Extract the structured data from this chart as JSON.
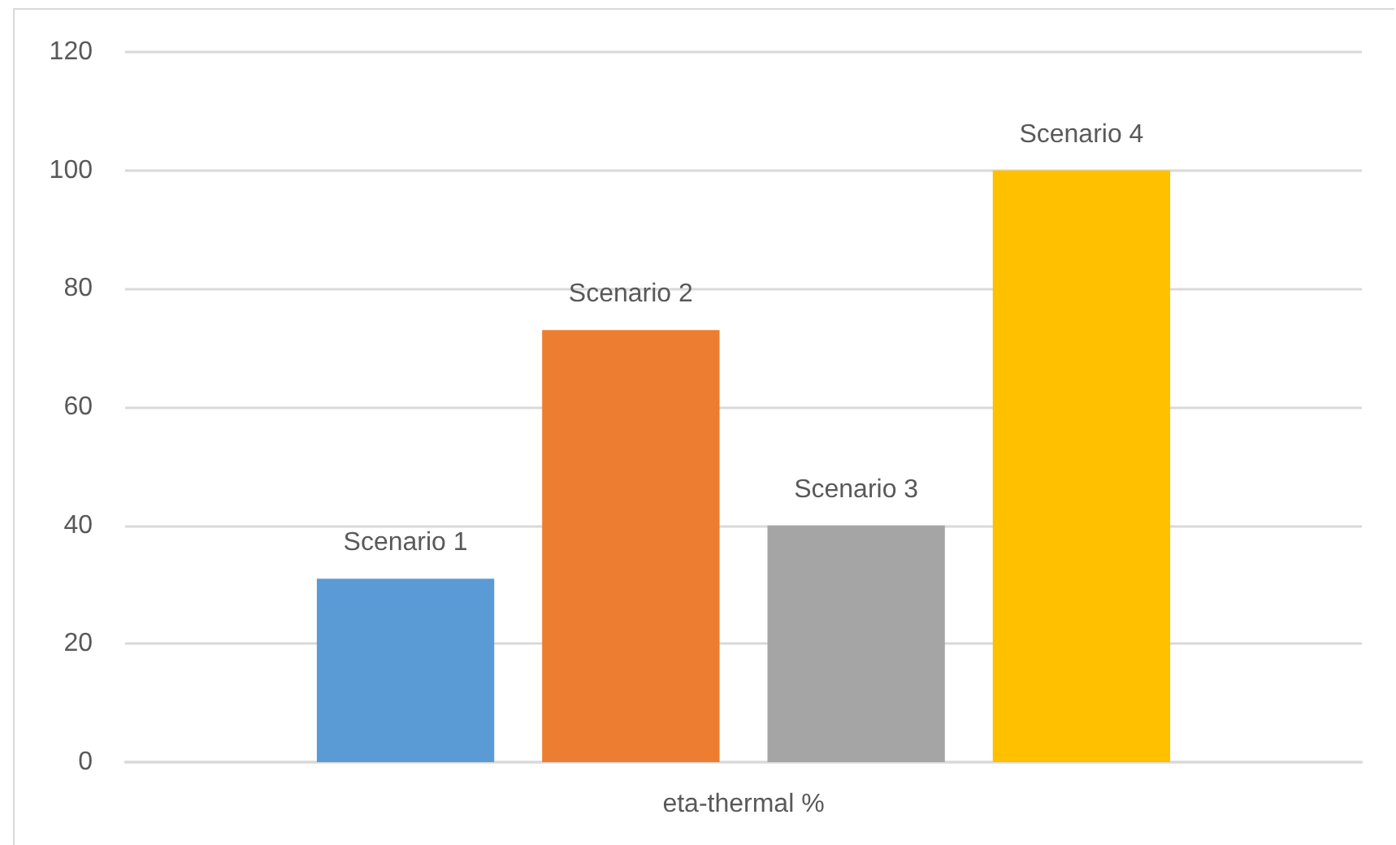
{
  "chart_data": {
    "type": "bar",
    "categories": [
      "eta-thermal %"
    ],
    "series": [
      {
        "name": "Scenario 1",
        "color": "#5b9bd5",
        "values": [
          31
        ]
      },
      {
        "name": "Scenario 2",
        "color": "#ed7d31",
        "values": [
          73
        ]
      },
      {
        "name": "Scenario 3",
        "color": "#a5a5a5",
        "values": [
          40
        ]
      },
      {
        "name": "Scenario 4",
        "color": "#ffc000",
        "values": [
          100
        ]
      }
    ],
    "ylim": [
      0,
      120
    ],
    "yticks": [
      0,
      20,
      40,
      60,
      80,
      100,
      120
    ],
    "grid": "y",
    "legend": false
  }
}
